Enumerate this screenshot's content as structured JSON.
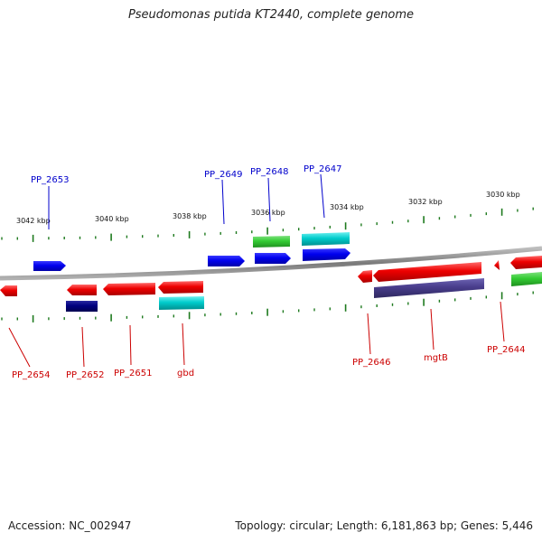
{
  "title": "Pseudomonas putida KT2440, complete genome",
  "footer": {
    "accession": "Accession: NC_002947",
    "summary": "Topology: circular; Length: 6,181,863 bp; Genes: 5,446"
  },
  "colors": {
    "forward_label": "#0000cc",
    "reverse_label": "#cc0000",
    "backbone": "#8a8a8a",
    "ticks": "#1e7a1e",
    "gene_red": "#ee0000",
    "gene_blue": "#0000ee",
    "gene_green": "#33cc33",
    "gene_cyan": "#00cccc",
    "gene_navy": "#000080",
    "gene_purple": "#483d8b"
  },
  "scale_labels": [
    {
      "id": "s3042",
      "text": "3042 kbp"
    },
    {
      "id": "s3040",
      "text": "3040 kbp"
    },
    {
      "id": "s3038",
      "text": "3038 kbp"
    },
    {
      "id": "s3036",
      "text": "3036 kbp"
    },
    {
      "id": "s3034",
      "text": "3034 kbp"
    },
    {
      "id": "s3032",
      "text": "3032 kbp"
    },
    {
      "id": "s3030",
      "text": "3030 kbp"
    }
  ],
  "forward_genes": [
    {
      "id": "pp2653",
      "label": "PP_2653",
      "color": "blue"
    },
    {
      "id": "pp2649",
      "label": "PP_2649",
      "color": "blue"
    },
    {
      "id": "pp2648",
      "label": "PP_2648",
      "color": "blue"
    },
    {
      "id": "pp2647",
      "label": "PP_2647",
      "color": "blue"
    }
  ],
  "reverse_genes": [
    {
      "id": "pp2654",
      "label": "PP_2654",
      "color": "red"
    },
    {
      "id": "pp2652",
      "label": "PP_2652",
      "color": "red"
    },
    {
      "id": "pp2651",
      "label": "PP_2651",
      "color": "red"
    },
    {
      "id": "gbd",
      "label": "gbd",
      "color": "red"
    },
    {
      "id": "pp2646",
      "label": "PP_2646",
      "color": "red"
    },
    {
      "id": "mgtb",
      "label": "mgtB",
      "color": "red"
    },
    {
      "id": "pp2644",
      "label": "PP_2644",
      "color": "red"
    }
  ]
}
